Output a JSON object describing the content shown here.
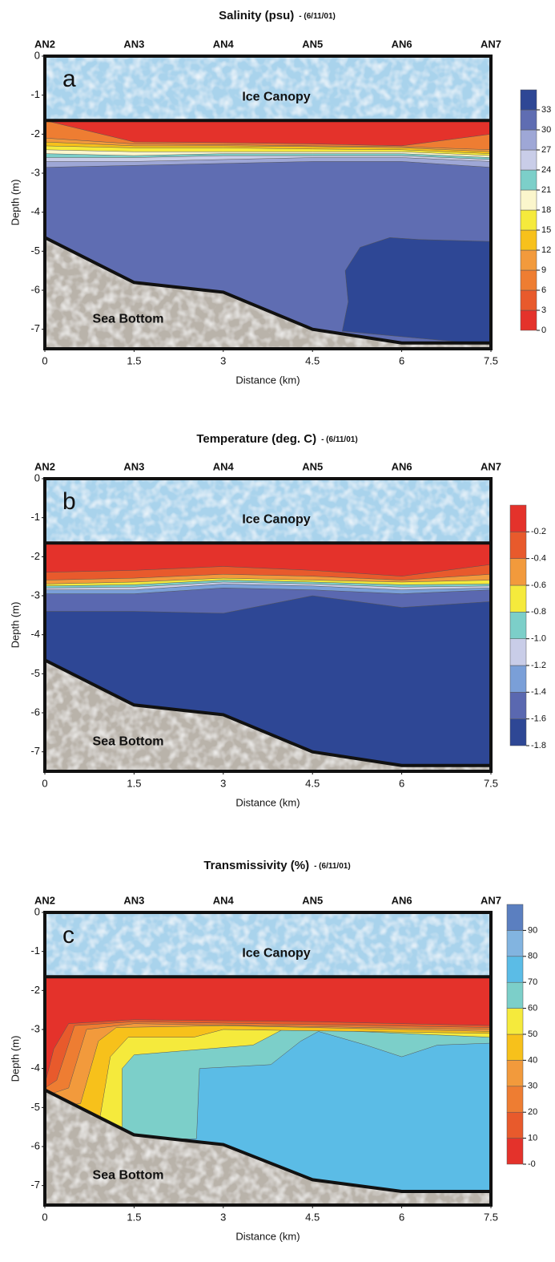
{
  "chart_data": [
    {
      "type": "contour",
      "title": "Salinity (psu)",
      "subtitle": "- (6/11/01)",
      "panel_label": "a",
      "ice_label": "Ice Canopy",
      "bottom_label": "Sea Bottom",
      "x_label": "Distance (km)",
      "y_label": "Depth (m)",
      "xlim": [
        0,
        7.5
      ],
      "ylim": [
        -7.5,
        0
      ],
      "xticks": [
        0,
        1.5,
        3,
        4.5,
        6,
        7.5
      ],
      "yticks": [
        0,
        -1,
        -2,
        -3,
        -4,
        -5,
        -6,
        -7
      ],
      "x2ticks": [
        {
          "value": 0,
          "label": "AN2"
        },
        {
          "value": 1.5,
          "label": "AN3"
        },
        {
          "value": 3,
          "label": "AN4"
        },
        {
          "value": 4.5,
          "label": "AN5"
        },
        {
          "value": 6,
          "label": "AN6"
        },
        {
          "value": 7.5,
          "label": "AN7"
        }
      ],
      "ice_base": -1.65,
      "bottom_x": [
        0,
        1.5,
        3,
        4.5,
        6,
        7.5
      ],
      "bottom_depth": [
        -4.65,
        -5.8,
        -6.05,
        -7.0,
        -7.35,
        -7.35
      ],
      "layer_x": [
        0,
        1.5,
        3,
        4.5,
        6,
        7.5
      ],
      "layers": [
        {
          "level": 30,
          "depth": [
            -7.5,
            -7.5,
            -7.5,
            -7.5,
            -7.5,
            -7.5
          ]
        },
        {
          "level": 27,
          "depth": [
            -2.85,
            -2.8,
            -2.75,
            -2.7,
            -2.7,
            -2.85
          ]
        },
        {
          "level": 24,
          "depth": [
            -2.7,
            -2.7,
            -2.65,
            -2.6,
            -2.6,
            -2.7
          ]
        },
        {
          "level": 21,
          "depth": [
            -2.6,
            -2.6,
            -2.55,
            -2.55,
            -2.55,
            -2.65
          ]
        },
        {
          "level": 18,
          "depth": [
            -2.5,
            -2.55,
            -2.5,
            -2.5,
            -2.5,
            -2.6
          ]
        },
        {
          "level": 15,
          "depth": [
            -2.4,
            -2.45,
            -2.45,
            -2.45,
            -2.45,
            -2.55
          ]
        },
        {
          "level": 12,
          "depth": [
            -2.3,
            -2.35,
            -2.35,
            -2.38,
            -2.4,
            -2.5
          ]
        },
        {
          "level": 9,
          "depth": [
            -2.2,
            -2.3,
            -2.3,
            -2.32,
            -2.35,
            -2.45
          ]
        },
        {
          "level": 6,
          "depth": [
            -2.1,
            -2.25,
            -2.27,
            -2.3,
            -2.32,
            -2.4
          ]
        },
        {
          "level": 0,
          "depth": [
            -1.65,
            -2.2,
            -2.22,
            -2.25,
            -2.3,
            -2.0
          ]
        }
      ],
      "patches": [
        {
          "level": 33,
          "x": [
            5.0,
            5.1,
            5.05,
            5.3,
            5.8,
            6.3,
            7.5,
            7.5,
            5.0
          ],
          "y": [
            -7.05,
            -6.3,
            -5.5,
            -4.9,
            -4.65,
            -4.7,
            -4.75,
            -7.4,
            -7.05
          ]
        }
      ],
      "colorbar": {
        "lim": [
          0,
          36
        ],
        "ticks": [
          0,
          3,
          6,
          9,
          12,
          15,
          18,
          21,
          24,
          27,
          30,
          33
        ],
        "colors": [
          "#e4322b",
          "#e85a2c",
          "#ee7d32",
          "#f29a3c",
          "#f7c11b",
          "#f5ea3c",
          "#fbf6cc",
          "#7ccfc9",
          "#c9cde8",
          "#9ea7d6",
          "#5f6db2",
          "#2e4795"
        ]
      }
    },
    {
      "type": "contour",
      "title": "Temperature (deg. C)",
      "subtitle": "- (6/11/01)",
      "panel_label": "b",
      "ice_label": "Ice Canopy",
      "bottom_label": "Sea Bottom",
      "x_label": "Distance (km)",
      "y_label": "Depth (m)",
      "xlim": [
        0,
        7.5
      ],
      "ylim": [
        -7.5,
        0
      ],
      "xticks": [
        0,
        1.5,
        3,
        4.5,
        6,
        7.5
      ],
      "yticks": [
        0,
        -1,
        -2,
        -3,
        -4,
        -5,
        -6,
        -7
      ],
      "x2ticks": [
        {
          "value": 0,
          "label": "AN2"
        },
        {
          "value": 1.5,
          "label": "AN3"
        },
        {
          "value": 3,
          "label": "AN4"
        },
        {
          "value": 4.5,
          "label": "AN5"
        },
        {
          "value": 6,
          "label": "AN6"
        },
        {
          "value": 7.5,
          "label": "AN7"
        }
      ],
      "ice_base": -1.65,
      "bottom_x": [
        0,
        1.5,
        3,
        4.5,
        6,
        7.5
      ],
      "bottom_depth": [
        -4.65,
        -5.8,
        -6.05,
        -7.0,
        -7.35,
        -7.35
      ],
      "layer_x": [
        0,
        1.5,
        3,
        4.5,
        6,
        7.5
      ],
      "layers": [
        {
          "level": -1.8,
          "depth": [
            -7.5,
            -7.5,
            -7.5,
            -7.5,
            -7.5,
            -7.5
          ]
        },
        {
          "level": -1.6,
          "depth": [
            -3.4,
            -3.4,
            -3.45,
            -3.0,
            -3.3,
            -3.15
          ]
        },
        {
          "level": -1.4,
          "depth": [
            -2.95,
            -2.95,
            -2.8,
            -2.85,
            -2.95,
            -2.85
          ]
        },
        {
          "level": -1.2,
          "depth": [
            -2.85,
            -2.85,
            -2.7,
            -2.75,
            -2.85,
            -2.8
          ]
        },
        {
          "level": -1.0,
          "depth": [
            -2.8,
            -2.78,
            -2.65,
            -2.7,
            -2.78,
            -2.75
          ]
        },
        {
          "level": -0.8,
          "depth": [
            -2.75,
            -2.72,
            -2.6,
            -2.65,
            -2.72,
            -2.7
          ]
        },
        {
          "level": -0.6,
          "depth": [
            -2.7,
            -2.65,
            -2.55,
            -2.6,
            -2.65,
            -2.6
          ]
        },
        {
          "level": -0.4,
          "depth": [
            -2.6,
            -2.55,
            -2.45,
            -2.5,
            -2.6,
            -2.45
          ]
        },
        {
          "level": -0.2,
          "depth": [
            -2.4,
            -2.35,
            -2.25,
            -2.35,
            -2.5,
            -2.2
          ]
        }
      ],
      "patches": [],
      "colorbar": {
        "lim": [
          -1.8,
          0
        ],
        "ticks": [
          -1.8,
          -1.6,
          -1.4,
          {
            "value": -1.2,
            "label": "-1.2"
          },
          {
            "value": -1.0,
            "label": "-1.0"
          },
          -0.8,
          -0.6,
          -0.4,
          -0.2
        ],
        "colors": [
          "#2e4795",
          "#5a68b0",
          "#7a9fd8",
          "#c9cde8",
          "#7ccfc9",
          "#f5ea3c",
          "#f29a3c",
          "#e85a2c",
          "#e4322b"
        ]
      }
    },
    {
      "type": "contour",
      "title": "Transmissivity (%)",
      "subtitle": "- (6/11/01)",
      "panel_label": "c",
      "ice_label": "Ice Canopy",
      "bottom_label": "Sea Bottom",
      "x_label": "Distance (km)",
      "y_label": "Depth (m)",
      "xlim": [
        0,
        7.5
      ],
      "ylim": [
        -7.5,
        0
      ],
      "xticks": [
        0,
        1.5,
        3,
        4.5,
        6,
        7.5
      ],
      "yticks": [
        0,
        -1,
        -2,
        -3,
        -4,
        -5,
        -6,
        -7
      ],
      "x2ticks": [
        {
          "value": 0,
          "label": "AN2"
        },
        {
          "value": 1.5,
          "label": "AN3"
        },
        {
          "value": 3,
          "label": "AN4"
        },
        {
          "value": 4.5,
          "label": "AN5"
        },
        {
          "value": 6,
          "label": "AN6"
        },
        {
          "value": 7.5,
          "label": "AN7"
        }
      ],
      "ice_base": -1.65,
      "bottom_x": [
        0,
        1.5,
        3,
        4.5,
        6,
        7.5
      ],
      "bottom_depth": [
        -4.55,
        -5.7,
        -5.95,
        -6.85,
        -7.15,
        -7.15
      ],
      "layer_x": [
        0,
        1.5,
        3,
        4.5,
        6,
        7.5
      ],
      "layers": [
        {
          "level": 70,
          "depth": [
            -7.5,
            -7.5,
            -7.5,
            -7.5,
            -7.5,
            -7.5
          ]
        }
      ],
      "patches": [
        {
          "level": 60,
          "x": [
            0,
            7.5,
            7.5,
            6.6,
            6.0,
            5.4,
            4.6,
            4.3,
            3.8,
            2.6,
            2.55,
            0
          ],
          "y": [
            -1.65,
            -1.65,
            -3.35,
            -3.4,
            -3.7,
            -3.4,
            -3.05,
            -3.3,
            -3.9,
            -4.0,
            -5.8,
            -5.8
          ]
        },
        {
          "level": 50,
          "x": [
            0,
            7.5,
            7.5,
            4.5,
            4.0,
            3.5,
            1.5,
            1.3,
            1.3,
            0
          ],
          "y": [
            -1.65,
            -1.65,
            -3.2,
            -3.0,
            -3.0,
            -3.4,
            -3.65,
            -4.0,
            -5.6,
            -5.6
          ]
        },
        {
          "level": 40,
          "x": [
            0,
            7.5,
            7.5,
            3.0,
            2.5,
            1.4,
            1.1,
            0.9,
            0
          ],
          "y": [
            -1.65,
            -1.65,
            -3.1,
            -3.0,
            -3.2,
            -3.2,
            -3.7,
            -5.5,
            -5.5
          ]
        },
        {
          "level": 30,
          "x": [
            0,
            7.5,
            7.5,
            3.0,
            1.2,
            0.9,
            0.6,
            0
          ],
          "y": [
            -1.65,
            -1.65,
            -3.05,
            -2.9,
            -2.95,
            -3.3,
            -4.9,
            -5.0
          ]
        },
        {
          "level": 20,
          "x": [
            0,
            7.5,
            7.5,
            1.5,
            0.7,
            0.4,
            0
          ],
          "y": [
            -1.65,
            -1.65,
            -3.0,
            -2.85,
            -3.0,
            -4.5,
            -4.7
          ]
        },
        {
          "level": 10,
          "x": [
            0,
            7.5,
            7.5,
            1.5,
            0.5,
            0.2,
            0
          ],
          "y": [
            -1.65,
            -1.65,
            -2.95,
            -2.8,
            -2.9,
            -4.3,
            -4.5
          ]
        },
        {
          "level": 0,
          "x": [
            0,
            7.5,
            7.5,
            4.5,
            1.5,
            0.4,
            0.15,
            0
          ],
          "y": [
            -1.65,
            -1.65,
            -2.9,
            -2.8,
            -2.75,
            -2.85,
            -3.5,
            -4.4
          ]
        }
      ],
      "colorbar": {
        "lim": [
          0,
          100
        ],
        "ticks": [
          {
            "value": 0,
            "label": "-0"
          },
          10,
          20,
          30,
          40,
          50,
          60,
          70,
          80,
          90
        ],
        "colors": [
          "#e4322b",
          "#e85a2c",
          "#ee7d32",
          "#f29a3c",
          "#f7c11b",
          "#f5ea3c",
          "#7ccfc9",
          "#5bbce6",
          "#82b4e0",
          "#5b7fc0"
        ]
      }
    }
  ]
}
